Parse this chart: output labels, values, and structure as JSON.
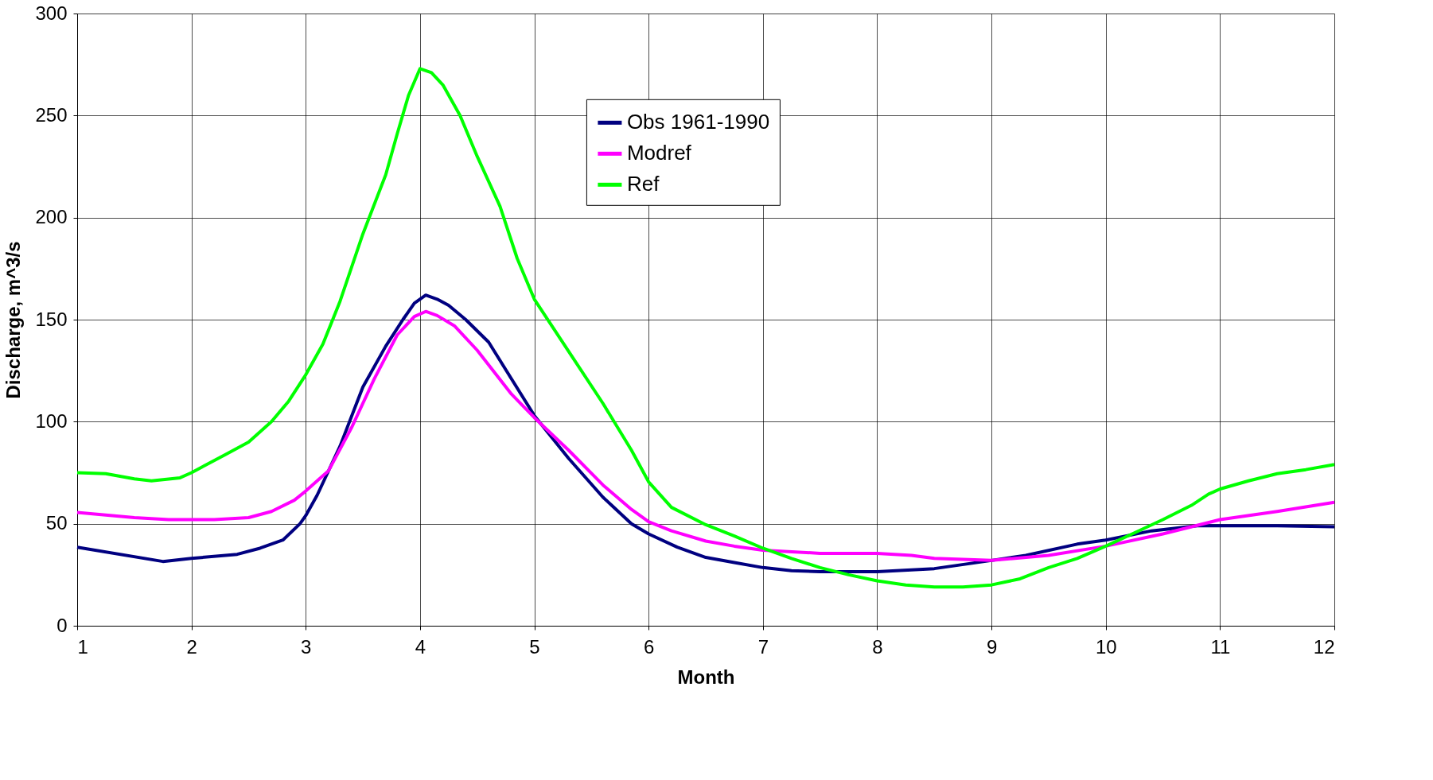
{
  "chart_data": {
    "type": "line",
    "xlabel": "Month",
    "ylabel": "Discharge, m^3/s",
    "xlim": [
      1,
      12
    ],
    "xticks": [
      1,
      2,
      3,
      4,
      5,
      6,
      7,
      8,
      9,
      10,
      11,
      12
    ],
    "ylim": [
      0,
      300
    ],
    "yticks": [
      0,
      50,
      100,
      150,
      200,
      250,
      300
    ],
    "grid": true,
    "legend": "top",
    "line_style": "solid",
    "marker": "none",
    "series": [
      {
        "name": "Obs 1961-1990",
        "color": "#000080",
        "x": [
          1,
          1.75,
          2,
          2.4,
          2.6,
          2.8,
          2.95,
          3,
          3.1,
          3.3,
          3.5,
          3.7,
          3.85,
          3.95,
          4.05,
          4.15,
          4.25,
          4.4,
          4.6,
          4.8,
          5,
          5.3,
          5.6,
          5.85,
          6,
          6.25,
          6.5,
          6.75,
          7,
          7.25,
          7.5,
          8,
          8.5,
          9,
          9.3,
          9.75,
          10,
          10.4,
          10.8,
          11,
          11.5,
          12
        ],
        "values": [
          38.5,
          31.5,
          33,
          35,
          38,
          42,
          50,
          54,
          64,
          88,
          117,
          137,
          150,
          158,
          162,
          160,
          157,
          150,
          139,
          121,
          103,
          82,
          63,
          50,
          45,
          38.5,
          33.5,
          31,
          28.5,
          27,
          26.5,
          26.5,
          28,
          32,
          34.5,
          40,
          42,
          46.5,
          49,
          49,
          49,
          48.5
        ]
      },
      {
        "name": "Modref",
        "color": "#ff00ff",
        "x": [
          1,
          1.5,
          1.8,
          2.2,
          2.5,
          2.7,
          2.9,
          3,
          3.2,
          3.4,
          3.6,
          3.8,
          3.95,
          4.05,
          4.15,
          4.3,
          4.5,
          4.8,
          5,
          5.3,
          5.6,
          5.85,
          6,
          6.2,
          6.5,
          6.75,
          7,
          7.5,
          8,
          8.3,
          8.5,
          9,
          9.5,
          10,
          10.5,
          11,
          11.5,
          12
        ],
        "values": [
          55.5,
          53,
          52,
          52,
          53,
          56,
          61.5,
          66,
          76,
          97,
          121,
          142.5,
          151.5,
          154,
          152,
          147,
          135,
          113.5,
          102,
          86,
          69,
          57,
          51,
          46.5,
          41.5,
          39,
          37,
          35.5,
          35.5,
          34.5,
          33,
          32,
          34.5,
          39,
          45,
          52,
          56,
          60.5
        ]
      },
      {
        "name": "Ref",
        "color": "#00ff00",
        "x": [
          1,
          1.25,
          1.5,
          1.65,
          1.9,
          2,
          2.3,
          2.5,
          2.7,
          2.85,
          3,
          3.15,
          3.3,
          3.5,
          3.7,
          3.8,
          3.9,
          4,
          4.1,
          4.2,
          4.35,
          4.5,
          4.7,
          4.85,
          5,
          5.3,
          5.6,
          5.85,
          6,
          6.2,
          6.5,
          6.75,
          7,
          7.25,
          7.5,
          7.75,
          8,
          8.25,
          8.5,
          8.75,
          9,
          9.25,
          9.5,
          9.75,
          10,
          10.25,
          10.5,
          10.75,
          10.9,
          11,
          11.25,
          11.5,
          11.75,
          12
        ],
        "values": [
          75,
          74.5,
          72,
          71,
          72.5,
          75,
          84,
          90,
          100,
          110,
          123,
          138,
          159,
          192,
          221,
          241,
          260,
          273,
          271,
          265,
          250,
          230,
          205.5,
          180,
          160,
          134.5,
          109,
          86,
          70.5,
          58,
          49.5,
          44,
          38,
          33,
          28.5,
          25,
          22,
          20,
          19,
          19,
          20,
          23,
          28.5,
          33,
          39,
          45.5,
          52,
          59,
          64.5,
          67,
          71,
          74.5,
          76.5,
          79
        ]
      }
    ]
  }
}
